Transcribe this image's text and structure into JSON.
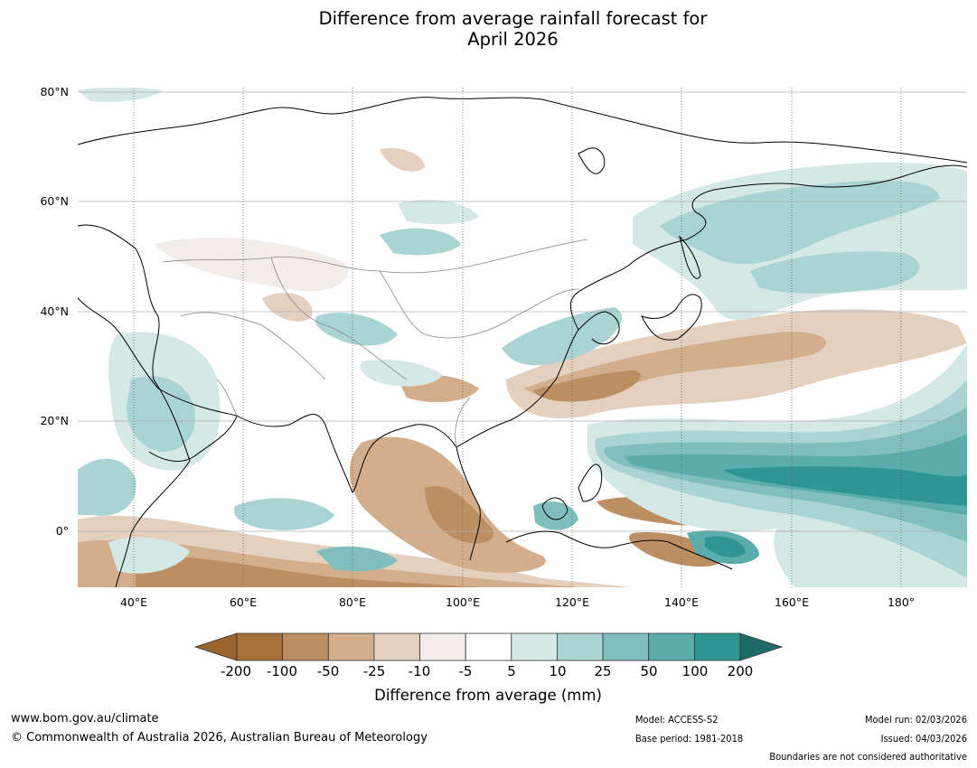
{
  "title": {
    "line1": "Difference from average rainfall forecast for",
    "line2": "April 2026"
  },
  "map": {
    "lat_labels": [
      "80°N",
      "60°N",
      "40°N",
      "20°N",
      "0°"
    ],
    "lon_labels": [
      "40°E",
      "60°E",
      "80°E",
      "100°E",
      "120°E",
      "140°E",
      "160°E",
      "180°"
    ],
    "extent": {
      "lon_min": 30,
      "lon_max": 192,
      "lat_min": -10,
      "lat_max": 81
    },
    "gridlines": true
  },
  "colorbar": {
    "tick_labels": [
      "-200",
      "-100",
      "-50",
      "-25",
      "-10",
      "-5",
      "5",
      "10",
      "25",
      "50",
      "100",
      "200"
    ],
    "colors": [
      "#a8713b",
      "#bd8e62",
      "#d3ae8c",
      "#e4d0bf",
      "#f2ede8",
      "#ffffff",
      "#d4e8e6",
      "#aad4d3",
      "#80bfbd",
      "#5aadab",
      "#2f9693",
      "#23706f"
    ],
    "extend_low_color": "#9b632d",
    "extend_high_color": "#1f6968",
    "title": "Difference from average (mm)"
  },
  "footer": {
    "url": "www.bom.gov.au/climate",
    "copyright": "© Commonwealth of Australia 2026, Australian Bureau of Meteorology",
    "model": "Model: ACCESS-S2",
    "base_period": "Base period: 1981-2018",
    "model_run": "Model run: 02/03/2026",
    "issued": "Issued: 04/03/2026",
    "disclaimer": "Boundaries are not considered authoritative"
  }
}
